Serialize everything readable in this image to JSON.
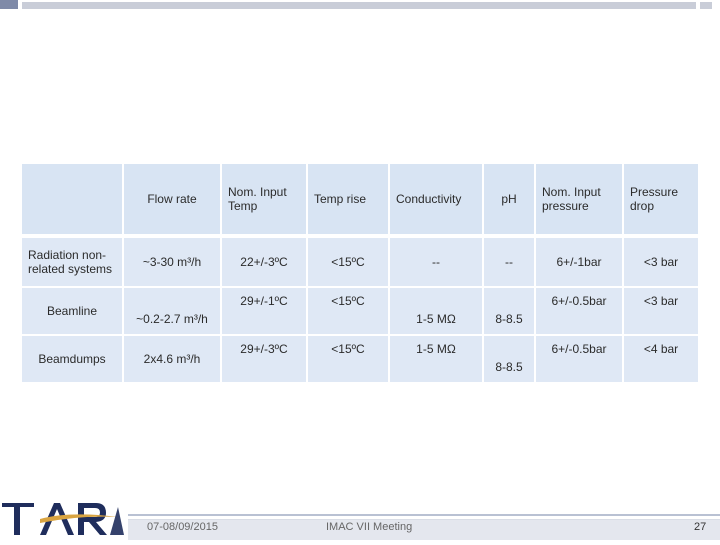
{
  "table": {
    "headers": [
      "",
      "Flow rate",
      "Nom. Input Temp",
      "Temp rise",
      "Conductivity",
      "pH",
      "Nom. Input pressure",
      "Pressure drop"
    ],
    "rows": [
      [
        "Radiation non-related systems",
        "~3-30 m³/h",
        "22+/-3ºC",
        "<15ºC",
        "--",
        "--",
        "6+/-1bar",
        "<3 bar"
      ],
      [
        "Beamline",
        "~0.2-2.7 m³/h",
        "29+/-1ºC",
        "<15ºC",
        "1-5 MΩ",
        "8-8.5",
        "6+/-0.5bar",
        "<3 bar"
      ],
      [
        "Beamdumps",
        "2x4.6 m³/h",
        "29+/-3ºC",
        "<15ºC",
        "1-5 MΩ",
        "8-8.5",
        "6+/-0.5bar",
        "<4 bar"
      ]
    ]
  },
  "footer": {
    "logo_text": "TARLA",
    "date": "07-08/09/2015",
    "meeting": "IMAC VII Meeting",
    "page_number": "27"
  },
  "colors": {
    "header_bg": "#d8e4f3",
    "cell_bg": "#dfe8f5",
    "logo_color": "#1f2d5c"
  }
}
